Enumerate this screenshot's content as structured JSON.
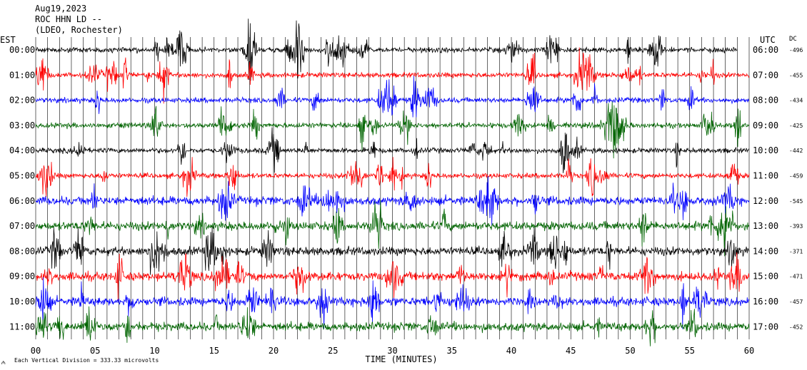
{
  "header": {
    "date": "Aug19,2023",
    "station": "ROC HHN LD --",
    "location": "(LDEO, Rochester)"
  },
  "labels": {
    "left_tz": "EST",
    "right_tz": "UTC",
    "dc": "DC",
    "xlabel": "TIME (MINUTES)",
    "footnote": "Each Vertical Division =  333.33 microvolts"
  },
  "colors": {
    "trace_cycle": [
      "#000000",
      "#ff0000",
      "#0000ff",
      "#006400"
    ],
    "grid": "#000000"
  },
  "chart_data": {
    "type": "line",
    "xlabel": "TIME (MINUTES)",
    "xlim": [
      0,
      60
    ],
    "x_ticks": [
      0,
      5,
      10,
      15,
      20,
      25,
      30,
      35,
      40,
      45,
      50,
      55,
      60
    ],
    "x_tick_labels": [
      "00",
      "05",
      "10",
      "15",
      "20",
      "25",
      "30",
      "35",
      "40",
      "45",
      "50",
      "55",
      "60"
    ],
    "grid": true,
    "series": [
      {
        "est": "00:00",
        "utc": "06:00",
        "dc": "-496",
        "end_minute": 59
      },
      {
        "est": "01:00",
        "utc": "07:00",
        "dc": "-455",
        "end_minute": 60
      },
      {
        "est": "02:00",
        "utc": "08:00",
        "dc": "-434",
        "end_minute": 60
      },
      {
        "est": "03:00",
        "utc": "09:00",
        "dc": "-425",
        "end_minute": 60
      },
      {
        "est": "04:00",
        "utc": "10:00",
        "dc": "-442",
        "end_minute": 60
      },
      {
        "est": "05:00",
        "utc": "11:00",
        "dc": "-459",
        "end_minute": 60
      },
      {
        "est": "06:00",
        "utc": "12:00",
        "dc": "-545",
        "end_minute": 60
      },
      {
        "est": "07:00",
        "utc": "13:00",
        "dc": "-393",
        "end_minute": 60
      },
      {
        "est": "08:00",
        "utc": "14:00",
        "dc": "-371",
        "end_minute": 60
      },
      {
        "est": "09:00",
        "utc": "15:00",
        "dc": "-471",
        "end_minute": 60
      },
      {
        "est": "10:00",
        "utc": "16:00",
        "dc": "-457",
        "end_minute": 60
      },
      {
        "est": "11:00",
        "utc": "17:00",
        "dc": "-452",
        "end_minute": 60
      }
    ]
  }
}
